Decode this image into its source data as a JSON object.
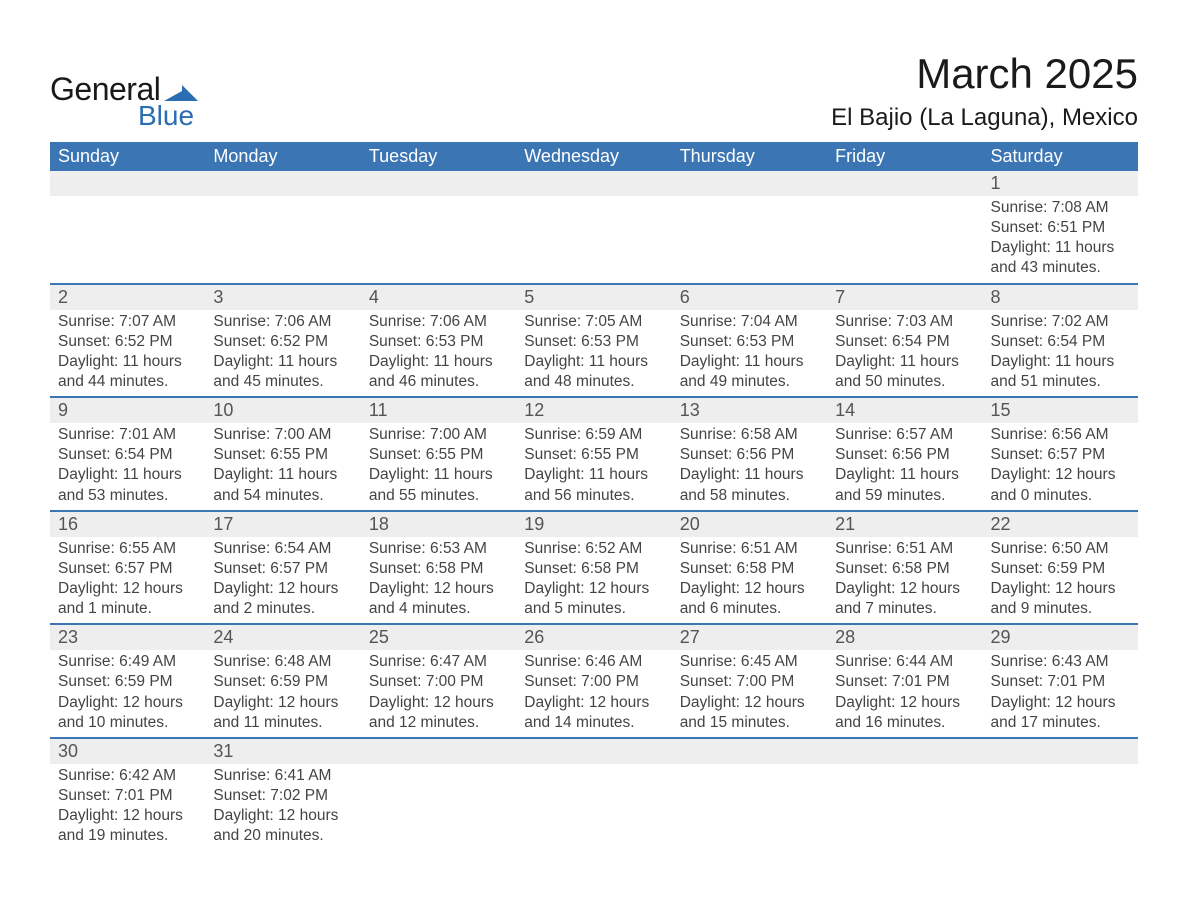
{
  "logo": {
    "general": "General",
    "blue": "Blue",
    "brand_color": "#2a6db0"
  },
  "header": {
    "month_title": "March 2025",
    "location": "El Bajio (La Laguna), Mexico"
  },
  "colors": {
    "header_bg": "#3b75b3",
    "header_text": "#ffffff",
    "daynum_bg": "#eeeeee",
    "text": "#444444",
    "rule": "#3b75b3"
  },
  "day_headers": [
    "Sunday",
    "Monday",
    "Tuesday",
    "Wednesday",
    "Thursday",
    "Friday",
    "Saturday"
  ],
  "weeks": [
    [
      null,
      null,
      null,
      null,
      null,
      null,
      {
        "n": "1",
        "sunrise": "7:08 AM",
        "sunset": "6:51 PM",
        "daylight": "11 hours and 43 minutes."
      }
    ],
    [
      {
        "n": "2",
        "sunrise": "7:07 AM",
        "sunset": "6:52 PM",
        "daylight": "11 hours and 44 minutes."
      },
      {
        "n": "3",
        "sunrise": "7:06 AM",
        "sunset": "6:52 PM",
        "daylight": "11 hours and 45 minutes."
      },
      {
        "n": "4",
        "sunrise": "7:06 AM",
        "sunset": "6:53 PM",
        "daylight": "11 hours and 46 minutes."
      },
      {
        "n": "5",
        "sunrise": "7:05 AM",
        "sunset": "6:53 PM",
        "daylight": "11 hours and 48 minutes."
      },
      {
        "n": "6",
        "sunrise": "7:04 AM",
        "sunset": "6:53 PM",
        "daylight": "11 hours and 49 minutes."
      },
      {
        "n": "7",
        "sunrise": "7:03 AM",
        "sunset": "6:54 PM",
        "daylight": "11 hours and 50 minutes."
      },
      {
        "n": "8",
        "sunrise": "7:02 AM",
        "sunset": "6:54 PM",
        "daylight": "11 hours and 51 minutes."
      }
    ],
    [
      {
        "n": "9",
        "sunrise": "7:01 AM",
        "sunset": "6:54 PM",
        "daylight": "11 hours and 53 minutes."
      },
      {
        "n": "10",
        "sunrise": "7:00 AM",
        "sunset": "6:55 PM",
        "daylight": "11 hours and 54 minutes."
      },
      {
        "n": "11",
        "sunrise": "7:00 AM",
        "sunset": "6:55 PM",
        "daylight": "11 hours and 55 minutes."
      },
      {
        "n": "12",
        "sunrise": "6:59 AM",
        "sunset": "6:55 PM",
        "daylight": "11 hours and 56 minutes."
      },
      {
        "n": "13",
        "sunrise": "6:58 AM",
        "sunset": "6:56 PM",
        "daylight": "11 hours and 58 minutes."
      },
      {
        "n": "14",
        "sunrise": "6:57 AM",
        "sunset": "6:56 PM",
        "daylight": "11 hours and 59 minutes."
      },
      {
        "n": "15",
        "sunrise": "6:56 AM",
        "sunset": "6:57 PM",
        "daylight": "12 hours and 0 minutes."
      }
    ],
    [
      {
        "n": "16",
        "sunrise": "6:55 AM",
        "sunset": "6:57 PM",
        "daylight": "12 hours and 1 minute."
      },
      {
        "n": "17",
        "sunrise": "6:54 AM",
        "sunset": "6:57 PM",
        "daylight": "12 hours and 2 minutes."
      },
      {
        "n": "18",
        "sunrise": "6:53 AM",
        "sunset": "6:58 PM",
        "daylight": "12 hours and 4 minutes."
      },
      {
        "n": "19",
        "sunrise": "6:52 AM",
        "sunset": "6:58 PM",
        "daylight": "12 hours and 5 minutes."
      },
      {
        "n": "20",
        "sunrise": "6:51 AM",
        "sunset": "6:58 PM",
        "daylight": "12 hours and 6 minutes."
      },
      {
        "n": "21",
        "sunrise": "6:51 AM",
        "sunset": "6:58 PM",
        "daylight": "12 hours and 7 minutes."
      },
      {
        "n": "22",
        "sunrise": "6:50 AM",
        "sunset": "6:59 PM",
        "daylight": "12 hours and 9 minutes."
      }
    ],
    [
      {
        "n": "23",
        "sunrise": "6:49 AM",
        "sunset": "6:59 PM",
        "daylight": "12 hours and 10 minutes."
      },
      {
        "n": "24",
        "sunrise": "6:48 AM",
        "sunset": "6:59 PM",
        "daylight": "12 hours and 11 minutes."
      },
      {
        "n": "25",
        "sunrise": "6:47 AM",
        "sunset": "7:00 PM",
        "daylight": "12 hours and 12 minutes."
      },
      {
        "n": "26",
        "sunrise": "6:46 AM",
        "sunset": "7:00 PM",
        "daylight": "12 hours and 14 minutes."
      },
      {
        "n": "27",
        "sunrise": "6:45 AM",
        "sunset": "7:00 PM",
        "daylight": "12 hours and 15 minutes."
      },
      {
        "n": "28",
        "sunrise": "6:44 AM",
        "sunset": "7:01 PM",
        "daylight": "12 hours and 16 minutes."
      },
      {
        "n": "29",
        "sunrise": "6:43 AM",
        "sunset": "7:01 PM",
        "daylight": "12 hours and 17 minutes."
      }
    ],
    [
      {
        "n": "30",
        "sunrise": "6:42 AM",
        "sunset": "7:01 PM",
        "daylight": "12 hours and 19 minutes."
      },
      {
        "n": "31",
        "sunrise": "6:41 AM",
        "sunset": "7:02 PM",
        "daylight": "12 hours and 20 minutes."
      },
      null,
      null,
      null,
      null,
      null
    ]
  ],
  "labels": {
    "sunrise": "Sunrise: ",
    "sunset": "Sunset: ",
    "daylight": "Daylight: "
  }
}
